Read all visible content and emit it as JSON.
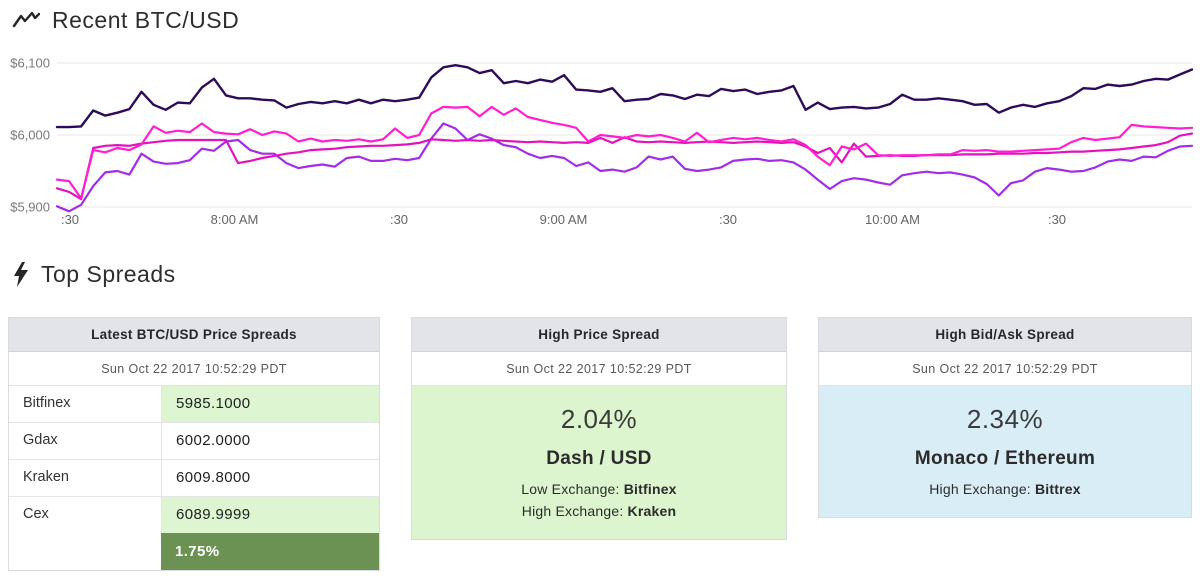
{
  "page": {
    "chart_title": "Recent BTC/USD",
    "spreads_title": "Top Spreads"
  },
  "chart_data": {
    "type": "line",
    "title": "Recent BTC/USD",
    "grid": true,
    "legend": "none",
    "ylim": [
      5880,
      6115
    ],
    "y_ticks": [
      "$6,100",
      "$6,000",
      "$5,900"
    ],
    "y_tick_values": [
      6100,
      6000,
      5900
    ],
    "x_ticks": [
      ":30",
      "8:00 AM",
      ":30",
      "9:00 AM",
      ":30",
      "10:00 AM",
      ":30"
    ],
    "series": [
      {
        "name": "violet-line",
        "color": "#a22ce8",
        "values": [
          5901,
          5894,
          5903,
          5929,
          5948,
          5950,
          5945,
          5974,
          5963,
          5960,
          5961,
          5965,
          5981,
          5978,
          5991,
          5993,
          5979,
          5974,
          5974,
          5961,
          5954,
          5957,
          5959,
          5956,
          5968,
          5970,
          5964,
          5964,
          5967,
          5965,
          5968,
          5995,
          6016,
          6009,
          5993,
          6001,
          5995,
          5986,
          5983,
          5974,
          5968,
          5971,
          5968,
          5957,
          5962,
          5950,
          5952,
          5949,
          5955,
          5970,
          5966,
          5970,
          5953,
          5950,
          5952,
          5955,
          5964,
          5966,
          5967,
          5964,
          5965,
          5962,
          5952,
          5938,
          5925,
          5936,
          5940,
          5938,
          5934,
          5931,
          5944,
          5947,
          5949,
          5947,
          5948,
          5945,
          5941,
          5932,
          5916,
          5933,
          5937,
          5949,
          5954,
          5952,
          5949,
          5950,
          5955,
          5963,
          5966,
          5964,
          5970,
          5969,
          5978,
          5984,
          5985
        ]
      },
      {
        "name": "magenta-line",
        "color": "#e312bb",
        "values": [
          5926,
          5921,
          5911,
          5982,
          5985,
          5986,
          5985,
          5988,
          5990,
          5992,
          5993,
          5993,
          5993,
          5993,
          5993,
          5961,
          5964,
          5968,
          5971,
          5974,
          5976,
          5979,
          5980,
          5981,
          5983,
          5984,
          5985,
          5985,
          5986,
          5987,
          5989,
          5994,
          5993,
          5992,
          5993,
          5992,
          5993,
          5992,
          5991,
          5990,
          5991,
          5990,
          5989,
          5990,
          5989,
          5996,
          5989,
          5997,
          5991,
          5990,
          5991,
          5990,
          5989,
          5990,
          5991,
          5990,
          5989,
          5990,
          5991,
          5990,
          5989,
          5990,
          5984,
          5975,
          5982,
          5962,
          5988,
          5970,
          5971,
          5972,
          5971,
          5971,
          5972,
          5972,
          5972,
          5973,
          5973,
          5973,
          5974,
          5974,
          5974,
          5975,
          5975,
          5976,
          5977,
          5977,
          5978,
          5979,
          5980,
          5982,
          5984,
          5986,
          5990,
          5999,
          6002
        ]
      },
      {
        "name": "hot-pink-line",
        "color": "#ff1fd0",
        "values": [
          5938,
          5936,
          5912,
          5979,
          5976,
          5982,
          5979,
          5987,
          6012,
          6003,
          6006,
          6004,
          6016,
          6004,
          6002,
          6001,
          6008,
          6000,
          6005,
          6002,
          5991,
          5995,
          5991,
          5993,
          5992,
          5994,
          5991,
          5994,
          6009,
          5996,
          6000,
          6030,
          6039,
          6038,
          6039,
          6026,
          6039,
          6028,
          6037,
          6025,
          6021,
          6017,
          6014,
          6010,
          5991,
          6000,
          5998,
          5996,
          6000,
          5998,
          6000,
          5996,
          5991,
          6003,
          5990,
          5993,
          5996,
          5994,
          5996,
          5993,
          5991,
          5994,
          5986,
          5970,
          5958,
          5984,
          5980,
          5988,
          5972,
          5971,
          5972,
          5972,
          5972,
          5973,
          5973,
          5979,
          5978,
          5979,
          5977,
          5977,
          5978,
          5979,
          5980,
          5981,
          5990,
          5996,
          5993,
          5995,
          5997,
          6014,
          6012,
          6011,
          6010,
          6009,
          6010
        ]
      },
      {
        "name": "dark-purple-line",
        "color": "#2d0b58",
        "values": [
          6011,
          6011,
          6012,
          6034,
          6027,
          6031,
          6036,
          6060,
          6042,
          6035,
          6045,
          6044,
          6066,
          6078,
          6055,
          6051,
          6051,
          6049,
          6048,
          6038,
          6043,
          6046,
          6044,
          6047,
          6044,
          6049,
          6044,
          6049,
          6047,
          6049,
          6052,
          6080,
          6094,
          6097,
          6094,
          6086,
          6090,
          6072,
          6075,
          6072,
          6077,
          6074,
          6083,
          6063,
          6062,
          6060,
          6065,
          6047,
          6049,
          6050,
          6057,
          6055,
          6050,
          6056,
          6054,
          6064,
          6061,
          6063,
          6057,
          6060,
          6062,
          6068,
          6035,
          6045,
          6036,
          6038,
          6039,
          6037,
          6038,
          6043,
          6056,
          6049,
          6049,
          6051,
          6049,
          6047,
          6042,
          6043,
          6031,
          6038,
          6042,
          6039,
          6044,
          6047,
          6054,
          6065,
          6064,
          6070,
          6068,
          6070,
          6075,
          6078,
          6077,
          6084,
          6091
        ]
      }
    ]
  },
  "cards": {
    "price_table": {
      "title": "Latest BTC/USD Price Spreads",
      "timestamp": "Sun Oct 22 2017 10:52:29 PDT",
      "rows": [
        {
          "exchange": "Bitfinex",
          "price": "5985.1000",
          "highlight": true
        },
        {
          "exchange": "Gdax",
          "price": "6002.0000",
          "highlight": false
        },
        {
          "exchange": "Kraken",
          "price": "6009.8000",
          "highlight": false
        },
        {
          "exchange": "Cex",
          "price": "6089.9999",
          "highlight": true
        }
      ],
      "spread_pct": "1.75%"
    },
    "high_price_spread": {
      "title": "High Price Spread",
      "timestamp": "Sun Oct 22 2017 10:52:29 PDT",
      "pct": "2.04%",
      "pair": "Dash / USD",
      "low_exchange_label": "Low Exchange:",
      "low_exchange": "Bitfinex",
      "high_exchange_label": "High Exchange:",
      "high_exchange": "Kraken"
    },
    "high_bidask_spread": {
      "title": "High Bid/Ask Spread",
      "timestamp": "Sun Oct 22 2017 10:52:29 PDT",
      "pct": "2.34%",
      "pair": "Monaco / Ethereum",
      "high_exchange_label": "High Exchange:",
      "high_exchange": "Bittrex"
    }
  },
  "colors": {
    "highlight_green": "#ddf5d0",
    "footer_green": "#6b9153",
    "info_blue": "#d9edf7",
    "header_gray": "#e2e4e9"
  }
}
